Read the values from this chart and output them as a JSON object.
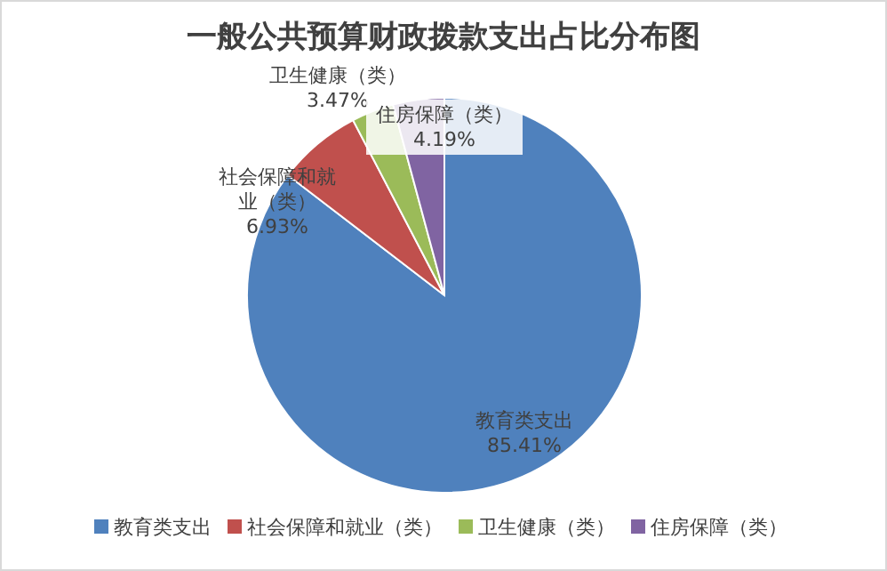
{
  "chart_data": {
    "type": "pie",
    "title": "一般公共预算财政拨款支出占比分布图",
    "categories": [
      "教育类支出",
      "社会保障和就业（类）",
      "卫生健康（类）",
      "住房保障（类）"
    ],
    "values": [
      85.41,
      6.93,
      3.47,
      4.19
    ],
    "colors": [
      "#4f81bd",
      "#c0504d",
      "#9bbb59",
      "#8064a2"
    ],
    "value_labels": [
      "85.41%",
      "6.93%",
      "3.47%",
      "4.19%"
    ],
    "data_labels": true,
    "legend": "bottom"
  }
}
